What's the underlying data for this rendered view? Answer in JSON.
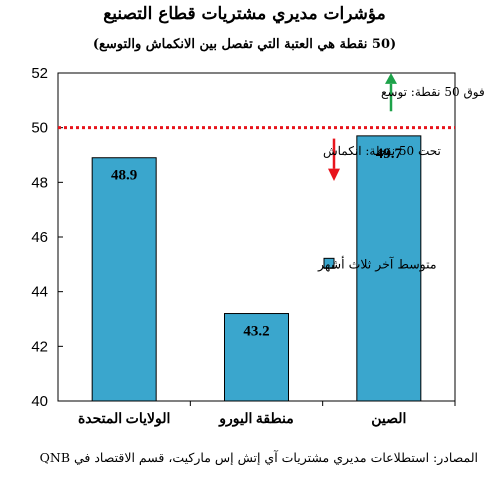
{
  "chart_data": {
    "type": "bar",
    "title": "مؤشرات مديري مشتريات قطاع التصنيع",
    "subtitle": "(50 نقطة هي العتبة التي تفصل بين الانكماش والتوسع)",
    "categories": [
      "الولايات المتحدة",
      "منطقة اليورو",
      "الصين"
    ],
    "series": [
      {
        "name": "متوسط آخر ثلاث أشهر",
        "values": [
          48.9,
          43.2,
          49.7
        ]
      }
    ],
    "data_labels": [
      "48.9",
      "43.2",
      "49.7"
    ],
    "ylim": [
      40,
      52
    ],
    "yticks": [
      40,
      42,
      44,
      46,
      48,
      50,
      52
    ],
    "threshold": 50,
    "annotations": {
      "above": "فوق 50 نقطة: توسع",
      "below": "تحت 50 نقطة: انكماش"
    },
    "grid": false,
    "legend_position": "center-right",
    "colors": {
      "bar": "#3aa6cd",
      "threshold_line": "#e8141c",
      "arrow_up": "#1ea24a",
      "arrow_down": "#e8141c"
    },
    "source": "المصادر: استطلاعات مديري مشتريات آي إتش إس ماركيت، قسم الاقتصاد في QNB"
  }
}
